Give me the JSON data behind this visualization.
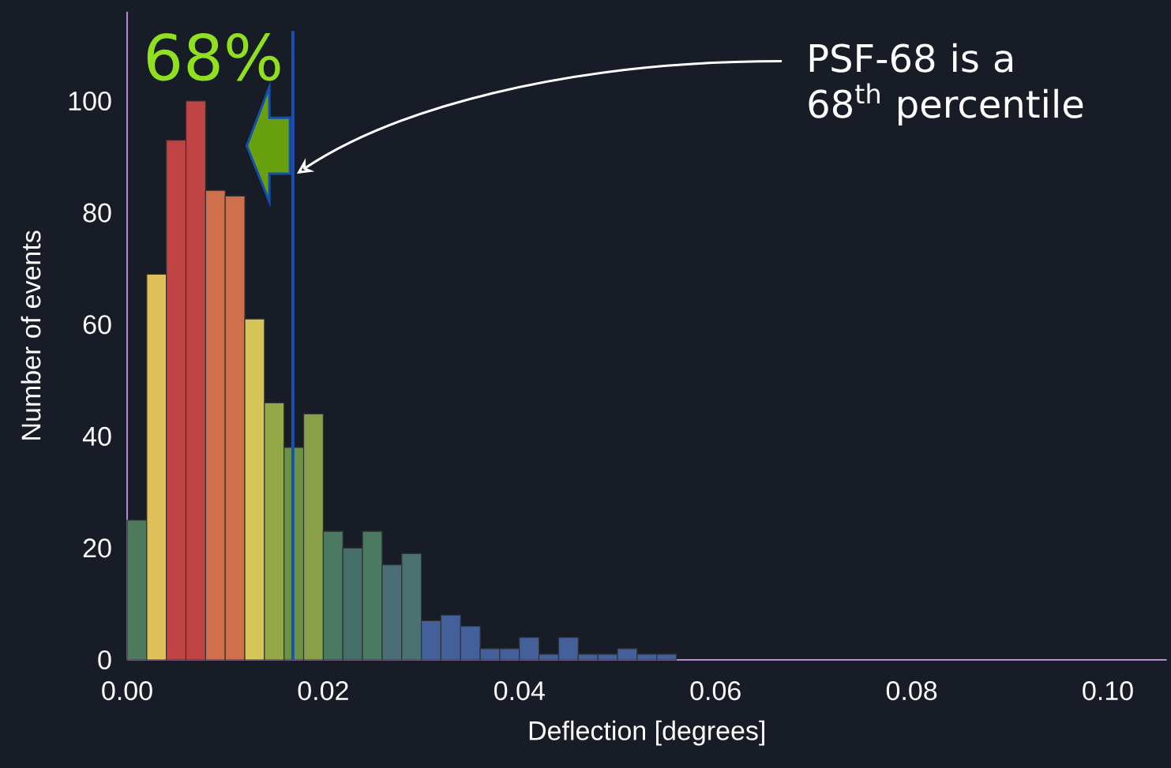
{
  "chart_data": {
    "type": "histogram",
    "bins": [
      0,
      0.002,
      0.004,
      0.006,
      0.008,
      0.01,
      0.012,
      0.014,
      0.016,
      0.018,
      0.02,
      0.022,
      0.024,
      0.026,
      0.028,
      0.03,
      0.032,
      0.034,
      0.036,
      0.038,
      0.04,
      0.042,
      0.044,
      0.046,
      0.048,
      0.05,
      0.052,
      0.054,
      0.056
    ],
    "values": [
      25,
      69,
      93,
      100,
      84,
      83,
      61,
      46,
      38,
      44,
      23,
      20,
      23,
      17,
      19,
      7,
      8,
      6,
      2,
      2,
      4,
      1,
      4,
      1,
      1,
      2,
      1,
      1
    ],
    "colors": [
      "#4e7a5e",
      "#e0c058",
      "#c04444",
      "#c04444",
      "#cf704c",
      "#cf704c",
      "#d4c758",
      "#94a848",
      "#6a9444",
      "#88a048",
      "#4a7a62",
      "#45706a",
      "#4a7a62",
      "#4a6e78",
      "#4a7070",
      "#44609a",
      "#44609a",
      "#44609a",
      "#44609a",
      "#44609a",
      "#44609a",
      "#44609a",
      "#44609a",
      "#44609a",
      "#44609a",
      "#44609a",
      "#44609a",
      "#44609a"
    ],
    "xlabel": "Deflection [degrees]",
    "ylabel": "Number of events",
    "xlim": [
      0,
      0.106
    ],
    "ylim": [
      0,
      116
    ],
    "xticks": [
      {
        "value": 0,
        "label": "0.00"
      },
      {
        "value": 0.02,
        "label": "0.02"
      },
      {
        "value": 0.04,
        "label": "0.04"
      },
      {
        "value": 0.06,
        "label": "0.06"
      },
      {
        "value": 0.08,
        "label": "0.08"
      },
      {
        "value": 0.1,
        "label": "0.10"
      }
    ],
    "yticks": [
      0,
      20,
      40,
      60,
      80,
      100
    ],
    "ref_lines": [
      {
        "axis": "x",
        "value": 0.0169,
        "color": "#1a50b0"
      }
    ],
    "annotations": [
      "68%",
      "PSF-68 is a 68$^{th}$ percentile"
    ],
    "grid": false
  }
}
